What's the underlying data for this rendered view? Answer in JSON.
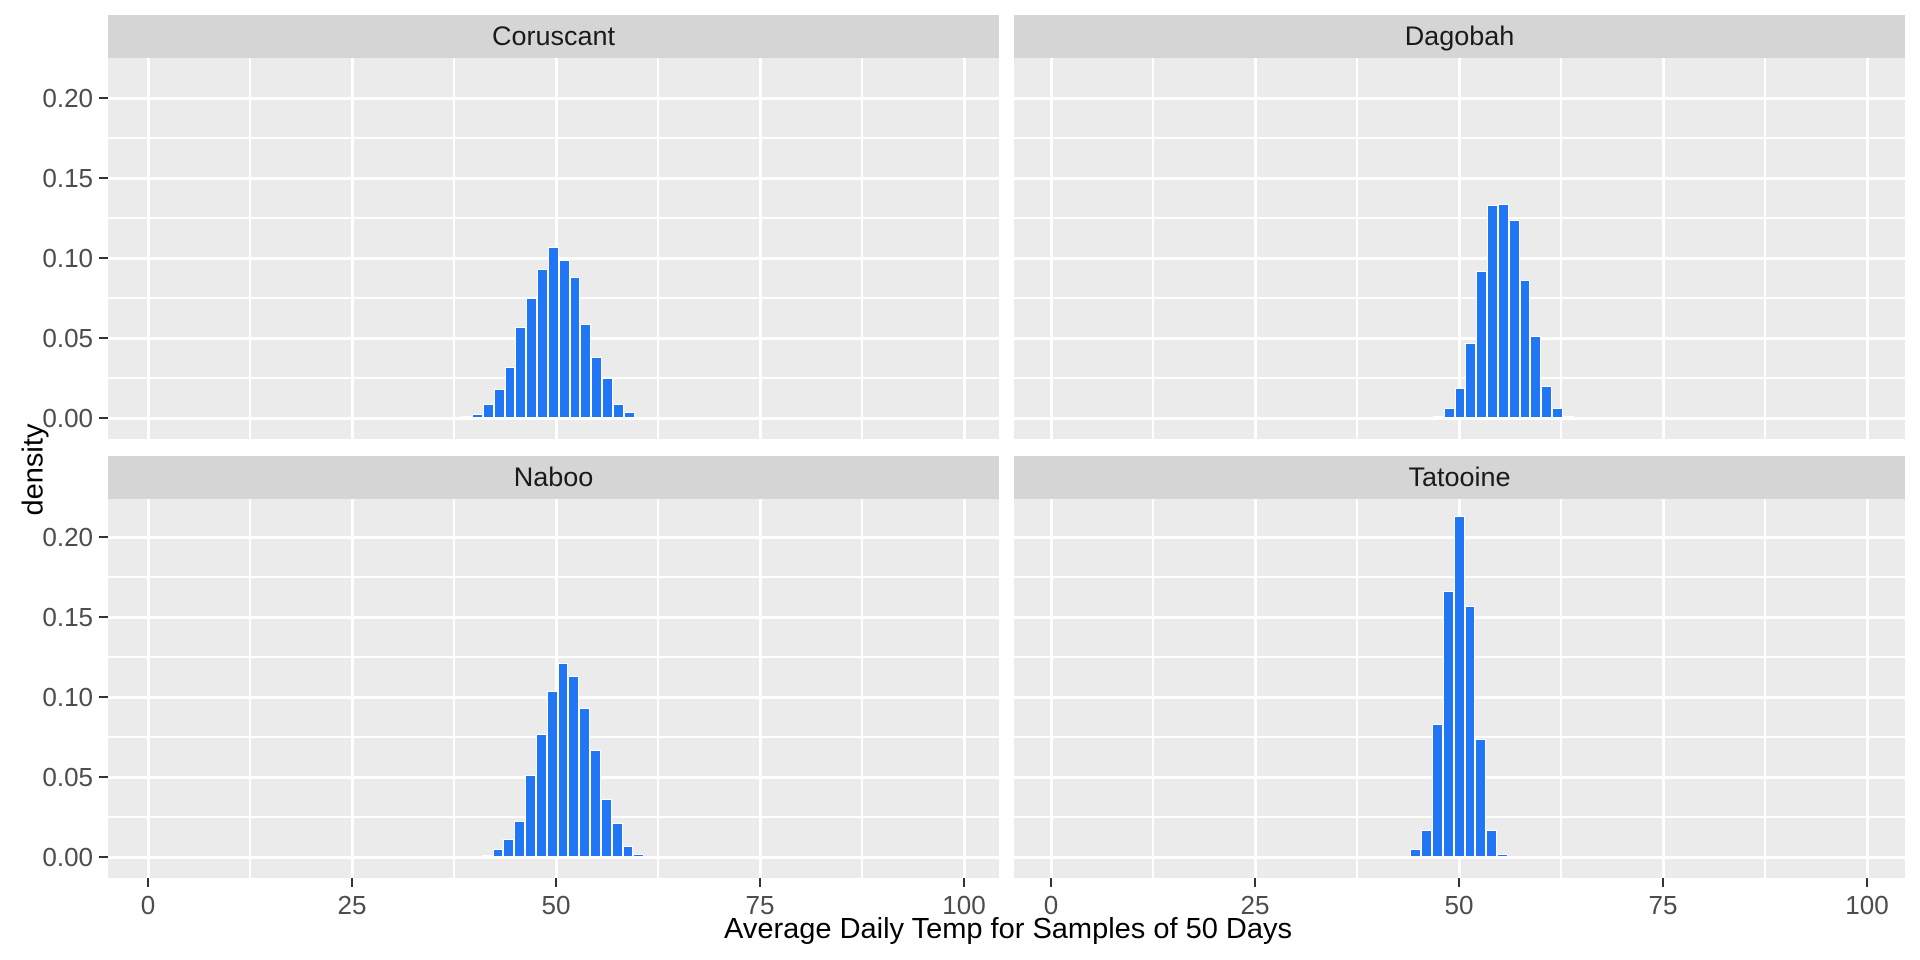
{
  "figure": {
    "kind": "faceted histogram",
    "x_axis_title": "Average Daily Temp for Samples of 50 Days",
    "y_axis_title": "density"
  },
  "chart_data": {
    "type": "bar",
    "subtype": "histogram-density",
    "title": "",
    "xlabel": "Average Daily Temp for Samples of 50 Days",
    "ylabel": "density",
    "legend": "none",
    "grid": "white major and minor gridlines on gray panel",
    "x_ticks": [
      0,
      25,
      50,
      75,
      100
    ],
    "x_minor_ticks": [
      12.5,
      37.5,
      62.5,
      87.5
    ],
    "y_ticks": [
      0.0,
      0.05,
      0.1,
      0.15,
      0.2
    ],
    "y_minor_ticks": [
      0.025,
      0.075,
      0.125,
      0.175
    ],
    "y_tick_labels": [
      "0.00",
      "0.05",
      "0.10",
      "0.15",
      "0.20"
    ],
    "xlim": [
      -4.9,
      104.3
    ],
    "ylim": [
      -0.0131,
      0.225
    ],
    "bin_width": 1.327,
    "facets": [
      {
        "name": "Coruscant",
        "bin_start": 38.4,
        "densities": [
          0.001,
          0.0025,
          0.009,
          0.018,
          0.032,
          0.057,
          0.075,
          0.093,
          0.107,
          0.099,
          0.088,
          0.059,
          0.038,
          0.025,
          0.009,
          0.004
        ]
      },
      {
        "name": "Dagobah",
        "bin_start": 46.8,
        "densities": [
          0.001,
          0.0065,
          0.0185,
          0.047,
          0.092,
          0.133,
          0.134,
          0.124,
          0.086,
          0.051,
          0.02,
          0.006,
          0.001
        ]
      },
      {
        "name": "Naboo",
        "bin_start": 40.9,
        "densities": [
          0.001,
          0.005,
          0.0115,
          0.0225,
          0.051,
          0.077,
          0.104,
          0.121,
          0.113,
          0.093,
          0.067,
          0.036,
          0.021,
          0.007,
          0.002
        ]
      },
      {
        "name": "Tatooine",
        "bin_start": 44.05,
        "densities": [
          0.005,
          0.017,
          0.083,
          0.166,
          0.213,
          0.157,
          0.0735,
          0.017,
          0.002
        ]
      }
    ]
  },
  "colors": {
    "bar_fill": "#2176F5",
    "bar_outline": "#FFFFFF",
    "panel_background": "#EBEBEB",
    "strip_background": "#D5D5D5",
    "gridline": "#FFFFFF",
    "tick_text": "#4D4D4D",
    "tick_mark": "#333333",
    "title_text": "#000000",
    "strip_text": "#1A1A1A",
    "figure_background": "#FFFFFF"
  }
}
